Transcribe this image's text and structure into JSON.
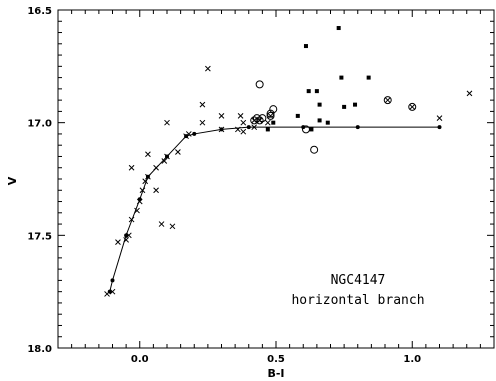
{
  "chart_data": {
    "type": "scatter",
    "xlabel": "B-I",
    "ylabel": "V",
    "xlim": [
      -0.3,
      1.3
    ],
    "ylim": [
      18.0,
      16.5
    ],
    "x_ticks": [
      0.0,
      0.5,
      1.0
    ],
    "x_tick_labels": [
      "0.0",
      "0.5",
      "1.0"
    ],
    "y_ticks": [
      16.5,
      17.0,
      17.5,
      18.0
    ],
    "y_tick_labels": [
      "16.5",
      "17.0",
      "17.5",
      "18.0"
    ],
    "grid": false,
    "legend": "none",
    "annotation": [
      "NGC4147",
      "horizontal branch"
    ],
    "series": [
      {
        "marker": "line-with-dots",
        "points": [
          [
            -0.11,
            17.75
          ],
          [
            -0.1,
            17.7
          ],
          [
            -0.05,
            17.5
          ],
          [
            0.0,
            17.34
          ],
          [
            0.03,
            17.24
          ],
          [
            0.1,
            17.15
          ],
          [
            0.17,
            17.06
          ],
          [
            0.2,
            17.05
          ],
          [
            0.3,
            17.03
          ],
          [
            0.4,
            17.02
          ],
          [
            0.6,
            17.02
          ],
          [
            0.8,
            17.02
          ],
          [
            1.1,
            17.02
          ]
        ]
      },
      {
        "marker": "x",
        "points": [
          [
            -0.12,
            17.76
          ],
          [
            -0.1,
            17.75
          ],
          [
            -0.08,
            17.53
          ],
          [
            -0.05,
            17.52
          ],
          [
            -0.04,
            17.5
          ],
          [
            -0.03,
            17.43
          ],
          [
            -0.01,
            17.39
          ],
          [
            0.0,
            17.35
          ],
          [
            0.01,
            17.3
          ],
          [
            -0.03,
            17.2
          ],
          [
            0.02,
            17.26
          ],
          [
            0.03,
            17.24
          ],
          [
            0.03,
            17.14
          ],
          [
            0.06,
            17.2
          ],
          [
            0.06,
            17.3
          ],
          [
            0.09,
            17.17
          ],
          [
            0.1,
            17.15
          ],
          [
            0.1,
            17.0
          ],
          [
            0.08,
            17.45
          ],
          [
            0.12,
            17.46
          ],
          [
            0.14,
            17.13
          ],
          [
            0.17,
            17.06
          ],
          [
            0.18,
            17.05
          ],
          [
            0.23,
            16.92
          ],
          [
            0.23,
            17.0
          ],
          [
            0.25,
            16.76
          ],
          [
            0.3,
            17.03
          ],
          [
            0.3,
            16.97
          ],
          [
            0.36,
            17.03
          ],
          [
            0.37,
            16.97
          ],
          [
            0.38,
            17.0
          ],
          [
            0.38,
            17.04
          ],
          [
            0.42,
            17.02
          ],
          [
            0.47,
            17.0
          ],
          [
            1.1,
            16.98
          ],
          [
            1.21,
            16.87
          ]
        ]
      },
      {
        "marker": "filled-square",
        "points": [
          [
            0.61,
            16.66
          ],
          [
            0.73,
            16.58
          ],
          [
            0.74,
            16.8
          ],
          [
            0.84,
            16.8
          ],
          [
            0.62,
            16.86
          ],
          [
            0.65,
            16.86
          ],
          [
            0.66,
            16.92
          ],
          [
            0.75,
            16.93
          ],
          [
            0.79,
            16.92
          ],
          [
            0.58,
            16.97
          ],
          [
            0.66,
            16.99
          ],
          [
            0.69,
            17.0
          ],
          [
            0.49,
            17.0
          ],
          [
            0.47,
            17.03
          ],
          [
            0.63,
            17.03
          ]
        ]
      },
      {
        "marker": "open-circle",
        "points": [
          [
            0.44,
            16.83
          ],
          [
            0.49,
            16.94
          ],
          [
            0.48,
            16.96
          ],
          [
            0.43,
            16.98
          ],
          [
            0.45,
            16.98
          ],
          [
            0.61,
            17.03
          ],
          [
            0.64,
            17.12
          ]
        ]
      },
      {
        "marker": "circled-x",
        "points": [
          [
            0.91,
            16.9
          ],
          [
            1.0,
            16.93
          ],
          [
            0.48,
            16.97
          ],
          [
            0.42,
            16.99
          ],
          [
            0.44,
            16.99
          ]
        ]
      }
    ]
  }
}
